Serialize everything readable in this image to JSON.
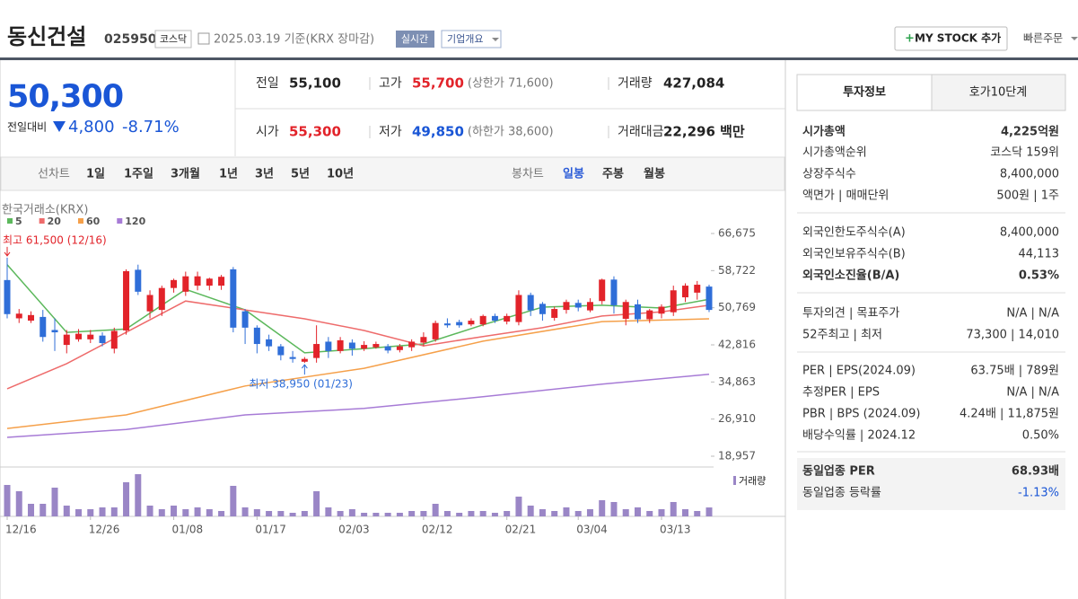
{
  "header": {
    "title": "동신건설",
    "code": "025950",
    "market": "코스닥",
    "date": "2025.03.19 기준(KRX 장마감)",
    "realtime": "실시간",
    "company": "기업개요",
    "mystock": "MY STOCK 추가",
    "quick_order": "빠른주문"
  },
  "quote": {
    "price": "50,300",
    "change_label": "전일대비",
    "change": "4,800",
    "change_rate": "-8.71%",
    "color": "#1a56d6",
    "rows": [
      [
        {
          "label": "전일",
          "value": "55,100"
        },
        {
          "label": "고가",
          "value": "55,700",
          "extra": "(상한가 71,600)",
          "color": "#e2232a"
        },
        {
          "label": "거래량",
          "value": "427,084"
        }
      ],
      [
        {
          "label": "시가",
          "value": "55,300",
          "color": "#e2232a"
        },
        {
          "label": "저가",
          "value": "49,850",
          "extra": "(하한가 38,600)",
          "color": "#1a56d6"
        },
        {
          "label": "거래대금",
          "value": "22,296 백만"
        }
      ]
    ]
  },
  "chart_tabs": {
    "line_label": "선차트",
    "line": [
      "1일",
      "1주일",
      "3개월",
      "1년",
      "3년",
      "5년",
      "10년"
    ],
    "candle_label": "봉차트",
    "candle": [
      "일봉",
      "주봉",
      "월봉"
    ],
    "active_candle": 0
  },
  "chart_data": {
    "type": "candlestick",
    "source": "한국거래소(KRX)",
    "categories": [
      "12/16",
      null,
      null,
      null,
      null,
      null,
      null,
      "12/26",
      null,
      null,
      null,
      null,
      null,
      null,
      "01/08",
      null,
      null,
      null,
      null,
      null,
      null,
      "01/17",
      null,
      null,
      null,
      null,
      null,
      null,
      "02/03",
      null,
      null,
      null,
      null,
      null,
      null,
      "02/12",
      null,
      null,
      null,
      null,
      null,
      null,
      "02/21",
      null,
      null,
      null,
      null,
      null,
      "03/04",
      null,
      null,
      null,
      null,
      null,
      null,
      "03/13",
      null,
      null,
      null,
      null
    ],
    "open": [
      56700,
      48500,
      48000,
      48800,
      46000,
      42800,
      44000,
      44000,
      44800,
      42000,
      45900,
      58900,
      50000,
      50300,
      55000,
      54200,
      55500,
      55500,
      55500,
      59000,
      50000,
      46500,
      44000,
      42500,
      40200,
      39200,
      40000,
      43500,
      41500,
      43300,
      42000,
      42300,
      42500,
      41700,
      42300,
      43300,
      44000,
      47400,
      47700,
      47200,
      47200,
      49000,
      47800,
      47700,
      53500,
      51600,
      48600,
      50300,
      51800,
      50200,
      52200,
      56800,
      48400,
      51500,
      48300,
      49500,
      49800,
      53000,
      54000,
      55300
    ],
    "high": [
      61500,
      50500,
      50000,
      50300,
      48500,
      46000,
      46200,
      46000,
      45500,
      46500,
      59000,
      60000,
      54500,
      55500,
      57000,
      58500,
      58500,
      57200,
      57800,
      59500,
      50500,
      47000,
      45000,
      43000,
      41500,
      40200,
      47000,
      44500,
      44500,
      44000,
      43600,
      43500,
      43000,
      43000,
      44000,
      45500,
      48000,
      48500,
      48200,
      48500,
      49300,
      49500,
      49500,
      54500,
      54000,
      52000,
      51000,
      52500,
      52500,
      52800,
      57000,
      57500,
      52500,
      52500,
      50500,
      51500,
      55500,
      56000,
      56500,
      55700
    ],
    "low": [
      48500,
      47500,
      47500,
      43500,
      41500,
      41000,
      43500,
      43200,
      42500,
      41000,
      45000,
      53500,
      48500,
      49000,
      54000,
      53300,
      54500,
      54500,
      54600,
      45500,
      43000,
      41000,
      41500,
      39500,
      39000,
      38950,
      39000,
      40000,
      41000,
      40500,
      41500,
      42000,
      41000,
      41200,
      41500,
      42500,
      43500,
      46500,
      46500,
      46800,
      46800,
      47500,
      47200,
      47000,
      49000,
      48000,
      48000,
      49500,
      50000,
      49800,
      51500,
      49500,
      47000,
      47500,
      47500,
      48500,
      49000,
      52000,
      52500,
      49850
    ],
    "close": [
      49400,
      49500,
      49200,
      44500,
      45500,
      45000,
      45200,
      45000,
      43200,
      45800,
      58600,
      54200,
      53500,
      55000,
      56700,
      57500,
      57500,
      57000,
      57400,
      46500,
      46500,
      43000,
      42500,
      40600,
      39800,
      39800,
      43000,
      41500,
      43800,
      42000,
      42800,
      43000,
      41600,
      42500,
      43500,
      44500,
      47500,
      47000,
      47000,
      48000,
      49000,
      48000,
      49000,
      53500,
      50200,
      49400,
      50500,
      52000,
      50800,
      52000,
      56800,
      51300,
      52000,
      48300,
      50200,
      51000,
      54500,
      55500,
      55700,
      50300
    ],
    "volume": [
      1505000,
      1204000,
      602000,
      602000,
      1376000,
      516000,
      344000,
      344000,
      430000,
      430000,
      1634000,
      2021000,
      516000,
      344000,
      516000,
      344000,
      430000,
      344000,
      258000,
      1462000,
      430000,
      344000,
      258000,
      258000,
      172000,
      258000,
      1204000,
      430000,
      258000,
      344000,
      172000,
      172000,
      172000,
      172000,
      258000,
      258000,
      602000,
      258000,
      172000,
      258000,
      258000,
      172000,
      258000,
      946000,
      516000,
      344000,
      258000,
      430000,
      258000,
      344000,
      774000,
      688000,
      344000,
      430000,
      258000,
      344000,
      688000,
      344000,
      258000,
      427084
    ],
    "volume_label": "거래량",
    "up_color": "#e2232a",
    "down_color": "#2f6ed8",
    "volume_color": "#9a86c6",
    "series": [
      {
        "name": "5",
        "color": "#5cb85c",
        "x": [
          0,
          5,
          10,
          15,
          20,
          25,
          30,
          35,
          40,
          45,
          50,
          55,
          59
        ],
        "values": [
          60000,
          45500,
          46200,
          54700,
          50300,
          41100,
          42000,
          43000,
          47100,
          50900,
          51300,
          50700,
          52600
        ]
      },
      {
        "name": "20",
        "color": "#ee6b6b",
        "x": [
          0,
          5,
          10,
          15,
          20,
          25,
          30,
          35,
          40,
          45,
          50,
          55,
          59
        ],
        "values": [
          33400,
          38800,
          45500,
          52200,
          50300,
          48400,
          45900,
          42600,
          44600,
          46500,
          49000,
          49900,
          51300
        ]
      },
      {
        "name": "60",
        "color": "#f5a04a",
        "x": [
          0,
          10,
          20,
          30,
          40,
          50,
          59
        ],
        "values": [
          24900,
          27800,
          34000,
          37800,
          43600,
          47800,
          48400
        ]
      },
      {
        "name": "120",
        "color": "#a77bd6",
        "x": [
          0,
          10,
          20,
          30,
          40,
          50,
          59
        ],
        "values": [
          23000,
          24700,
          27800,
          29200,
          31700,
          34400,
          36500
        ]
      }
    ],
    "ylim": [
      18957,
      66675
    ],
    "yticks": [
      {
        "value": 66675,
        "label": "66,675"
      },
      {
        "value": 58722,
        "label": "58,722"
      },
      {
        "value": 50769,
        "label": "50,769"
      },
      {
        "value": 42816,
        "label": "42,816"
      },
      {
        "value": 34863,
        "label": "34,863"
      },
      {
        "value": 26910,
        "label": "26,910"
      },
      {
        "value": 18957,
        "label": "18,957"
      }
    ],
    "annotations": [
      {
        "text": "최고 61,500 (12/16)",
        "index": 0,
        "value": 61500,
        "color": "#e2232a"
      },
      {
        "text": "최저 38,950 (01/23)",
        "index": 25,
        "value": 38950,
        "color": "#2f6ed8"
      }
    ]
  },
  "invest_info": {
    "tabs": [
      "투자정보",
      "호가10단계"
    ],
    "groups": [
      [
        {
          "label": "시가총액",
          "value": "4,225억원",
          "bold": true
        },
        {
          "label": "시가총액순위",
          "value": "코스닥 159위"
        },
        {
          "label": "상장주식수",
          "value": "8,400,000"
        },
        {
          "label": "액면가 | 매매단위",
          "value": "500원 | 1주"
        }
      ],
      [
        {
          "label": "외국인한도주식수(A)",
          "value": "8,400,000"
        },
        {
          "label": "외국인보유주식수(B)",
          "value": "44,113"
        },
        {
          "label": "외국인소진율(B/A)",
          "value": "0.53%",
          "bold": true
        }
      ],
      [
        {
          "label": "투자의견 | 목표주가",
          "value": "N/A | N/A"
        },
        {
          "label": "52주최고 | 최저",
          "value": "73,300 | 14,010"
        }
      ],
      [
        {
          "label": "PER | EPS(2024.09)",
          "value": "63.75배 | 789원"
        },
        {
          "label": "추정PER | EPS",
          "value": "N/A | N/A"
        },
        {
          "label": "PBR | BPS (2024.09)",
          "value": "4.24배 | 11,875원"
        },
        {
          "label": "배당수익률 | 2024.12",
          "value": "0.50%"
        }
      ],
      [
        {
          "label": "동일업종 PER",
          "value": "68.93배",
          "bold": true
        },
        {
          "label": "동일업종 등락률",
          "value": "-1.13%",
          "color": "#1a56d6"
        }
      ]
    ]
  }
}
